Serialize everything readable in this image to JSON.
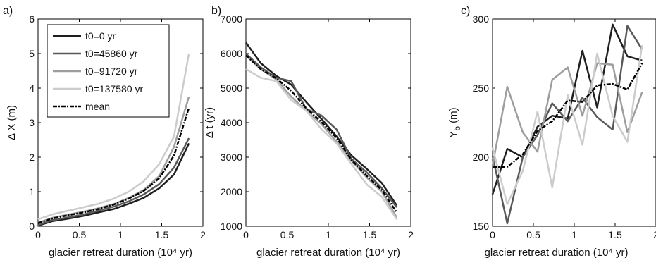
{
  "chart_data": [
    {
      "type": "line",
      "panel_label": "a)",
      "xlabel": "glacier retreat duration (10⁴ yr)",
      "ylabel": "Δ X (m)",
      "xlim": [
        0,
        2
      ],
      "ylim": [
        0,
        6
      ],
      "xticks": [
        "0",
        "0.5",
        "1",
        "1.5",
        "2"
      ],
      "yticks": [
        "0",
        "1",
        "2",
        "3",
        "4",
        "5",
        "6"
      ],
      "legend_position": "top-left",
      "x": [
        0,
        0.18,
        0.37,
        0.55,
        0.73,
        0.92,
        1.1,
        1.28,
        1.47,
        1.65,
        1.83
      ],
      "series": [
        {
          "name": "t0=0 yr",
          "color": "#1f1f1f",
          "dash": "",
          "values": [
            0.02,
            0.15,
            0.22,
            0.3,
            0.4,
            0.5,
            0.65,
            0.82,
            1.1,
            1.5,
            2.4
          ]
        },
        {
          "name": "t0=45860 yr",
          "color": "#595959",
          "dash": "",
          "values": [
            0.04,
            0.18,
            0.26,
            0.34,
            0.45,
            0.57,
            0.72,
            0.92,
            1.22,
            1.7,
            2.55
          ]
        },
        {
          "name": "t0=91720 yr",
          "color": "#9e9e9e",
          "dash": "",
          "values": [
            0.1,
            0.25,
            0.34,
            0.42,
            0.52,
            0.64,
            0.82,
            1.05,
            1.45,
            2.3,
            3.75
          ]
        },
        {
          "name": "t0=137580 yr",
          "color": "#cccccc",
          "dash": "",
          "values": [
            0.2,
            0.35,
            0.45,
            0.55,
            0.65,
            0.8,
            1.0,
            1.3,
            1.8,
            2.6,
            5.0
          ]
        },
        {
          "name": "mean",
          "color": "#000000",
          "dash": "6,2,2,2",
          "values": [
            0.09,
            0.23,
            0.32,
            0.4,
            0.5,
            0.63,
            0.8,
            1.02,
            1.39,
            2.05,
            3.43
          ]
        }
      ]
    },
    {
      "type": "line",
      "panel_label": "b)",
      "xlabel": "glacier retreat duration (10⁴ yr)",
      "ylabel": "Δ t (yr)",
      "xlim": [
        0,
        2
      ],
      "ylim": [
        1000,
        7000
      ],
      "xticks": [
        "0",
        "0.5",
        "1",
        "1.5",
        "2"
      ],
      "yticks": [
        "1000",
        "2000",
        "3000",
        "4000",
        "5000",
        "6000",
        "7000"
      ],
      "x": [
        0,
        0.18,
        0.37,
        0.55,
        0.73,
        0.92,
        1.1,
        1.28,
        1.47,
        1.65,
        1.83
      ],
      "series": [
        {
          "name": "t0=0 yr",
          "color": "#1f1f1f",
          "dash": "",
          "values": [
            6320,
            5720,
            5350,
            5100,
            4600,
            4100,
            3600,
            3050,
            2650,
            2250,
            1600
          ]
        },
        {
          "name": "t0=45860 yr",
          "color": "#595959",
          "dash": "",
          "values": [
            6000,
            5600,
            5300,
            5200,
            4400,
            4200,
            3800,
            2950,
            2550,
            2100,
            1550
          ]
        },
        {
          "name": "t0=91720 yr",
          "color": "#9e9e9e",
          "dash": "",
          "values": [
            5950,
            5550,
            5250,
            4750,
            4350,
            3950,
            3450,
            2900,
            2400,
            2000,
            1250
          ]
        },
        {
          "name": "t0=137580 yr",
          "color": "#cccccc",
          "dash": "",
          "values": [
            5550,
            5300,
            5200,
            4650,
            4350,
            3800,
            3400,
            2800,
            2200,
            1850,
            1200
          ]
        },
        {
          "name": "mean",
          "color": "#000000",
          "dash": "6,2,2,2",
          "values": [
            5950,
            5550,
            5280,
            4920,
            4420,
            4010,
            3560,
            2920,
            2450,
            2050,
            1400
          ]
        }
      ]
    },
    {
      "type": "line",
      "panel_label": "c)",
      "xlabel": "glacier retreat duration (10⁴ yr)",
      "ylabel": "Y",
      "ylabel_sub": "b",
      "ylabel_unit": "(m)",
      "xlim": [
        0,
        2
      ],
      "ylim": [
        150,
        300
      ],
      "xticks": [
        "0",
        "0.5",
        "1",
        "1.5",
        "2"
      ],
      "yticks": [
        "150",
        "200",
        "250",
        "300"
      ],
      "x": [
        0,
        0.18,
        0.37,
        0.55,
        0.73,
        0.92,
        1.1,
        1.28,
        1.47,
        1.65,
        1.83
      ],
      "series": [
        {
          "name": "t0=0 yr",
          "color": "#1f1f1f",
          "dash": "",
          "values": [
            173,
            206,
            200,
            222,
            230,
            228,
            277,
            236,
            296,
            273,
            270
          ]
        },
        {
          "name": "t0=45860 yr",
          "color": "#595959",
          "dash": "",
          "values": [
            201,
            152,
            200,
            216,
            239,
            226,
            243,
            229,
            220,
            295,
            278
          ]
        },
        {
          "name": "t0=91720 yr",
          "color": "#9e9e9e",
          "dash": "",
          "values": [
            194,
            251,
            218,
            204,
            256,
            265,
            230,
            268,
            267,
            218,
            247
          ]
        },
        {
          "name": "t0=137580 yr",
          "color": "#cccccc",
          "dash": "",
          "values": [
            207,
            166,
            190,
            233,
            178,
            245,
            209,
            275,
            230,
            211,
            281
          ]
        },
        {
          "name": "mean",
          "color": "#000000",
          "dash": "6,2,2,2",
          "values": [
            193,
            193,
            202,
            219,
            226,
            241,
            240,
            252,
            253,
            249,
            268
          ]
        }
      ]
    }
  ]
}
